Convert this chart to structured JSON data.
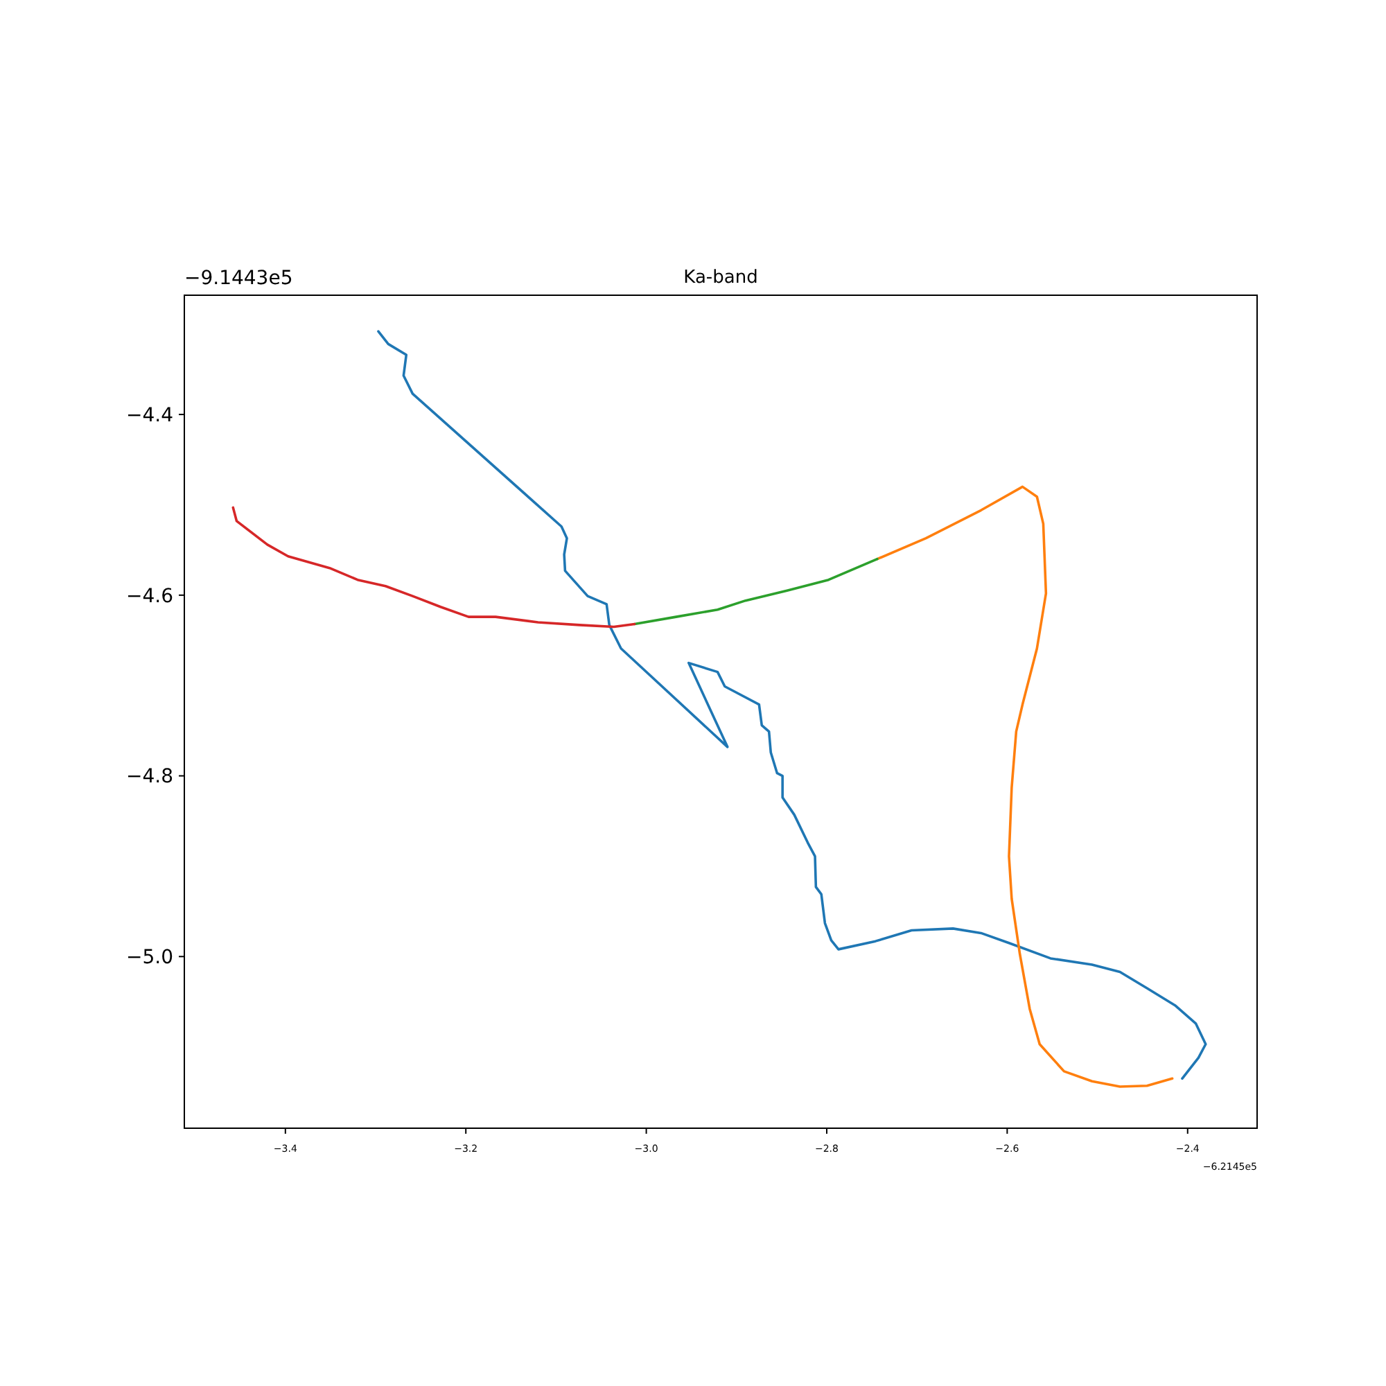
{
  "chart_data": {
    "type": "line",
    "title": "Ka-band",
    "xlim": [
      -3.512,
      -2.323
    ],
    "ylim": [
      -5.19,
      -4.268
    ],
    "xticks": [
      -3.4,
      -3.2,
      {
        "value": -3.0,
        "label": "−3.0"
      },
      -2.8,
      -2.6,
      -2.4
    ],
    "yticks": [
      -4.4,
      -4.6,
      -4.8,
      {
        "value": -5.0,
        "label": "−5.0"
      }
    ],
    "grid": false,
    "marker": "none",
    "line_style": "solid",
    "annotations": [
      "−9.1443e5",
      "−6.2145e5"
    ],
    "series": [
      {
        "color": "#1f77b4",
        "x": [
          -3.297,
          -3.286,
          -3.266,
          -3.269,
          -3.259,
          -3.094,
          -3.088,
          -3.091,
          -3.09,
          -3.065,
          -3.044,
          -3.041,
          -3.028,
          -2.91,
          -2.953,
          -2.921,
          -2.913,
          -2.875,
          -2.872,
          -2.864,
          -2.862,
          -2.855,
          -2.849,
          -2.849,
          -2.836,
          -2.821,
          -2.813,
          -2.812,
          -2.806,
          -2.802,
          -2.795,
          -2.787,
          -2.746,
          -2.706,
          -2.66,
          -2.629,
          -2.598,
          -2.552,
          -2.506,
          -2.475,
          -2.445,
          -2.414,
          -2.391,
          -2.38,
          -2.388,
          -2.406
        ],
        "values": [
          -4.308,
          -4.322,
          -4.334,
          -4.357,
          -4.377,
          -4.524,
          -4.537,
          -4.555,
          -4.573,
          -4.601,
          -4.61,
          -4.633,
          -4.659,
          -4.768,
          -4.675,
          -4.685,
          -4.701,
          -4.721,
          -4.744,
          -4.751,
          -4.774,
          -4.797,
          -4.8,
          -4.824,
          -4.843,
          -4.874,
          -4.889,
          -4.923,
          -4.931,
          -4.963,
          -4.982,
          -4.992,
          -4.983,
          -4.971,
          -4.969,
          -4.974,
          -4.985,
          -5.002,
          -5.009,
          -5.017,
          -5.035,
          -5.054,
          -5.074,
          -5.097,
          -5.112,
          -5.135
        ]
      },
      {
        "color": "#ff7f0e",
        "x": [
          -2.744,
          -2.69,
          -2.629,
          -2.583,
          -2.567,
          -2.56,
          -2.557,
          -2.567,
          -2.583,
          -2.59,
          -2.595,
          -2.598,
          -2.595,
          -2.586,
          -2.575,
          -2.564,
          -2.537,
          -2.506,
          -2.475,
          -2.445,
          -2.417
        ],
        "values": [
          -4.56,
          -4.537,
          -4.506,
          -4.48,
          -4.491,
          -4.521,
          -4.598,
          -4.659,
          -4.721,
          -4.751,
          -4.813,
          -4.889,
          -4.936,
          -4.997,
          -5.058,
          -5.097,
          -5.127,
          -5.138,
          -5.144,
          -5.143,
          -5.135
        ]
      },
      {
        "color": "#2ca02c",
        "x": [
          -3.013,
          -2.967,
          -2.921,
          -2.89,
          -2.844,
          -2.798,
          -2.744
        ],
        "values": [
          -4.632,
          -4.624,
          -4.616,
          -4.606,
          -4.595,
          -4.583,
          -4.56
        ]
      },
      {
        "color": "#d62728",
        "x": [
          -3.458,
          -3.454,
          -3.42,
          -3.397,
          -3.351,
          -3.32,
          -3.289,
          -3.259,
          -3.228,
          -3.197,
          -3.167,
          -3.12,
          -3.074,
          -3.036,
          -3.013
        ],
        "values": [
          -4.503,
          -4.518,
          -4.544,
          -4.557,
          -4.57,
          -4.583,
          -4.59,
          -4.601,
          -4.613,
          -4.624,
          -4.624,
          -4.63,
          -4.633,
          -4.635,
          -4.632
        ]
      }
    ]
  }
}
